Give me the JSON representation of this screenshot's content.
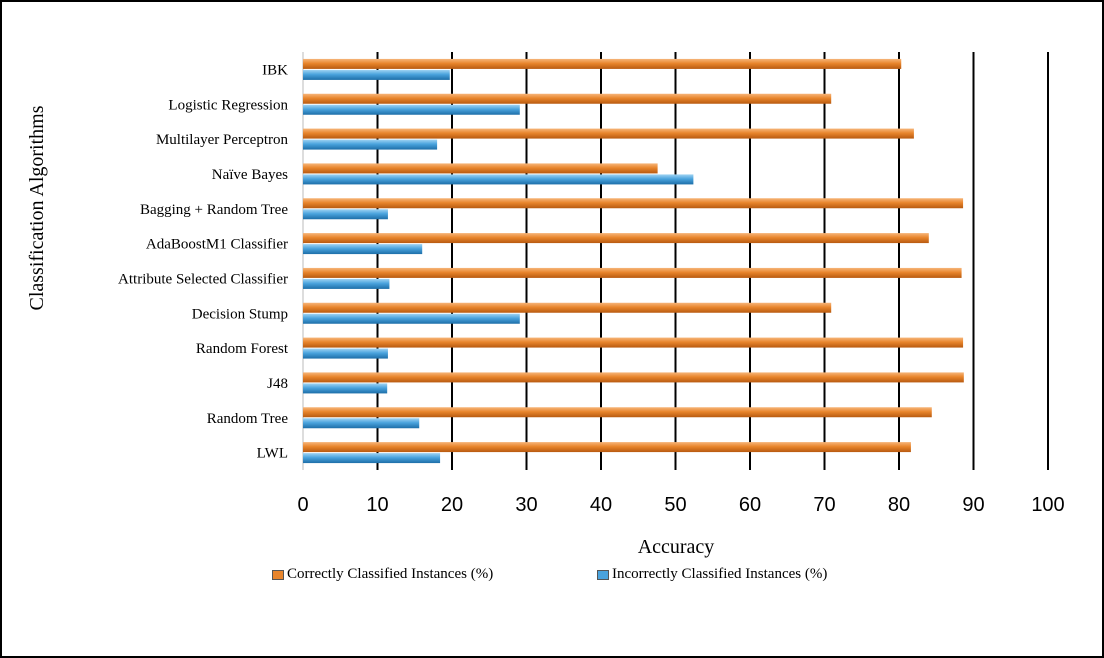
{
  "chart_data": {
    "type": "bar",
    "orientation": "horizontal",
    "categories": [
      "IBK",
      "Logistic Regression",
      "Multilayer Perceptron",
      "Naïve Bayes",
      "Bagging + Random Tree",
      "AdaBoostM1 Classifier",
      "Attribute Selected Classifier",
      "Decision Stump",
      "Random Forest",
      "J48",
      "Random Tree",
      "LWL"
    ],
    "series": [
      {
        "name": "Correctly Classified Instances (%)",
        "color": "#e8852c",
        "values": [
          80.3,
          70.9,
          82.0,
          47.6,
          88.6,
          84.0,
          88.4,
          70.9,
          88.6,
          88.7,
          84.4,
          81.6
        ]
      },
      {
        "name": "Incorrectly Classified Instances (%)",
        "color": "#4aa3dd",
        "values": [
          19.7,
          29.1,
          18.0,
          52.4,
          11.4,
          16.0,
          11.6,
          29.1,
          11.4,
          11.3,
          15.6,
          18.4
        ]
      }
    ],
    "xlim": [
      0,
      100
    ],
    "xticks": [
      "0",
      "10",
      "20",
      "30",
      "40",
      "50",
      "60",
      "70",
      "80",
      "90",
      "100"
    ],
    "xlabel": "Accuracy",
    "ylabel": "Classification  Algorithms",
    "grid": "vertical",
    "legend_position": "bottom"
  }
}
